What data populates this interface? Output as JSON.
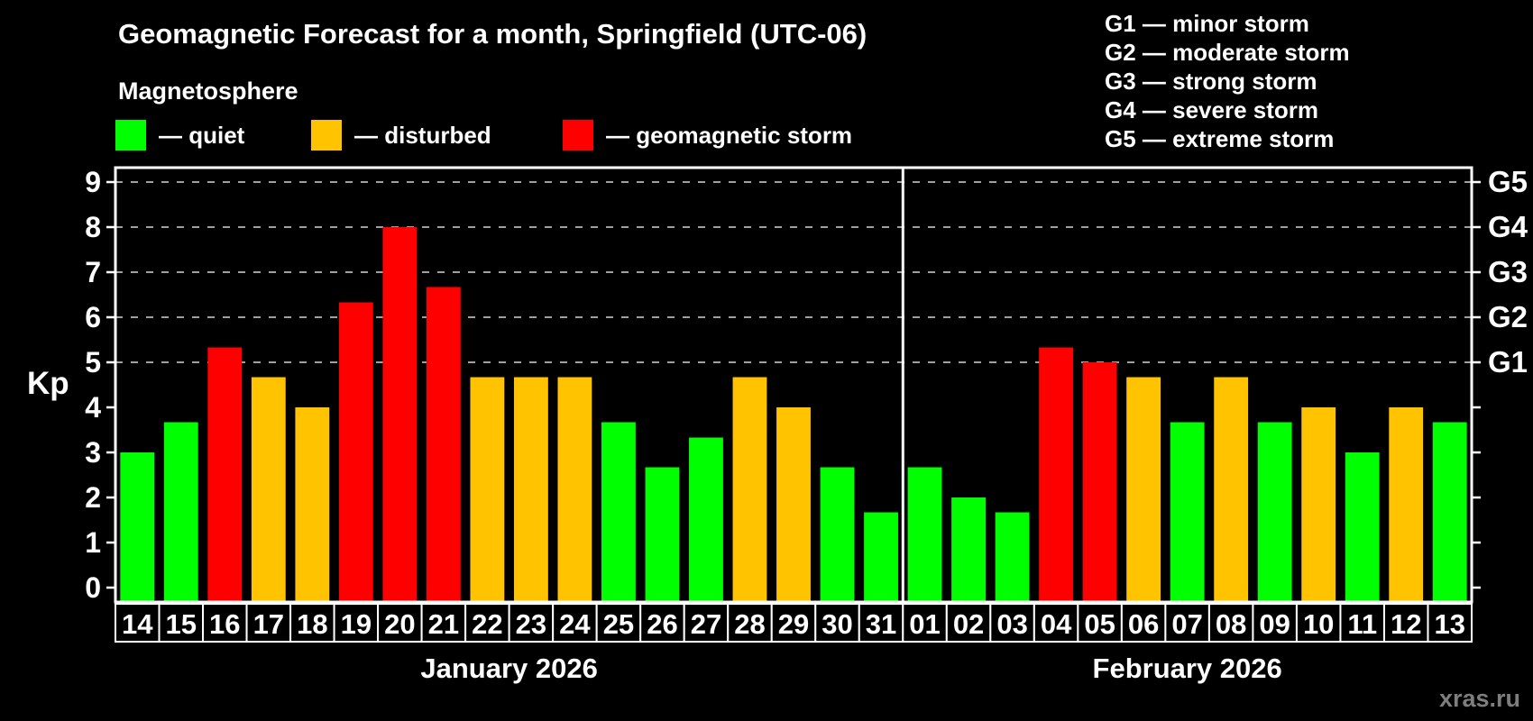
{
  "page": {
    "background": "#000000",
    "watermark": "xras.ru"
  },
  "header": {
    "title": "Geomagnetic Forecast for a month, Springfield (UTC-06)",
    "subtitle": "Magnetosphere"
  },
  "legend": {
    "items": [
      {
        "key": "quiet",
        "label": "— quiet",
        "color": "#00ff00"
      },
      {
        "key": "disturbed",
        "label": "— disturbed",
        "color": "#ffc300"
      },
      {
        "key": "storm",
        "label": "— geomagnetic storm",
        "color": "#ff0000"
      }
    ]
  },
  "g_legend": {
    "items": [
      "G1 — minor storm",
      "G2 — moderate storm",
      "G3 — strong storm",
      "G4 — severe storm",
      "G5 — extreme storm"
    ]
  },
  "chart_data": {
    "type": "bar",
    "title": "Geomagnetic Forecast for a month, Springfield (UTC-06)",
    "subtitle": "Magnetosphere",
    "ylabel": "Kp",
    "ylim": [
      -0.35,
      9.32
    ],
    "yticks": [
      0,
      1,
      2,
      3,
      4,
      5,
      6,
      7,
      8,
      9
    ],
    "grid_levels": [
      5,
      6,
      7,
      8,
      9
    ],
    "grid_on": true,
    "legend_position": "top",
    "right_axis": [
      {
        "kp": 5,
        "label": "G1"
      },
      {
        "kp": 6,
        "label": "G2"
      },
      {
        "kp": 7,
        "label": "G3"
      },
      {
        "kp": 8,
        "label": "G4"
      },
      {
        "kp": 9,
        "label": "G5"
      }
    ],
    "status_colors": {
      "quiet": "#00ff00",
      "disturbed": "#ffc300",
      "storm": "#ff0000"
    },
    "months": [
      {
        "label": "January 2026",
        "bars": [
          {
            "day": "14",
            "kp": 3.0,
            "status": "quiet"
          },
          {
            "day": "15",
            "kp": 3.67,
            "status": "quiet"
          },
          {
            "day": "16",
            "kp": 5.33,
            "status": "storm"
          },
          {
            "day": "17",
            "kp": 4.67,
            "status": "disturbed"
          },
          {
            "day": "18",
            "kp": 4.0,
            "status": "disturbed"
          },
          {
            "day": "19",
            "kp": 6.33,
            "status": "storm"
          },
          {
            "day": "20",
            "kp": 8.0,
            "status": "storm"
          },
          {
            "day": "21",
            "kp": 6.67,
            "status": "storm"
          },
          {
            "day": "22",
            "kp": 4.67,
            "status": "disturbed"
          },
          {
            "day": "23",
            "kp": 4.67,
            "status": "disturbed"
          },
          {
            "day": "24",
            "kp": 4.67,
            "status": "disturbed"
          },
          {
            "day": "25",
            "kp": 3.67,
            "status": "quiet"
          },
          {
            "day": "26",
            "kp": 2.67,
            "status": "quiet"
          },
          {
            "day": "27",
            "kp": 3.33,
            "status": "quiet"
          },
          {
            "day": "28",
            "kp": 4.67,
            "status": "disturbed"
          },
          {
            "day": "29",
            "kp": 4.0,
            "status": "disturbed"
          },
          {
            "day": "30",
            "kp": 2.67,
            "status": "quiet"
          },
          {
            "day": "31",
            "kp": 1.67,
            "status": "quiet"
          }
        ]
      },
      {
        "label": "February 2026",
        "bars": [
          {
            "day": "01",
            "kp": 2.67,
            "status": "quiet"
          },
          {
            "day": "02",
            "kp": 2.0,
            "status": "quiet"
          },
          {
            "day": "03",
            "kp": 1.67,
            "status": "quiet"
          },
          {
            "day": "04",
            "kp": 5.33,
            "status": "storm"
          },
          {
            "day": "05",
            "kp": 5.0,
            "status": "storm"
          },
          {
            "day": "06",
            "kp": 4.67,
            "status": "disturbed"
          },
          {
            "day": "07",
            "kp": 3.67,
            "status": "quiet"
          },
          {
            "day": "08",
            "kp": 4.67,
            "status": "disturbed"
          },
          {
            "day": "09",
            "kp": 3.67,
            "status": "quiet"
          },
          {
            "day": "10",
            "kp": 4.0,
            "status": "disturbed"
          },
          {
            "day": "11",
            "kp": 3.0,
            "status": "quiet"
          },
          {
            "day": "12",
            "kp": 4.0,
            "status": "disturbed"
          },
          {
            "day": "13",
            "kp": 3.67,
            "status": "quiet"
          }
        ]
      }
    ]
  }
}
